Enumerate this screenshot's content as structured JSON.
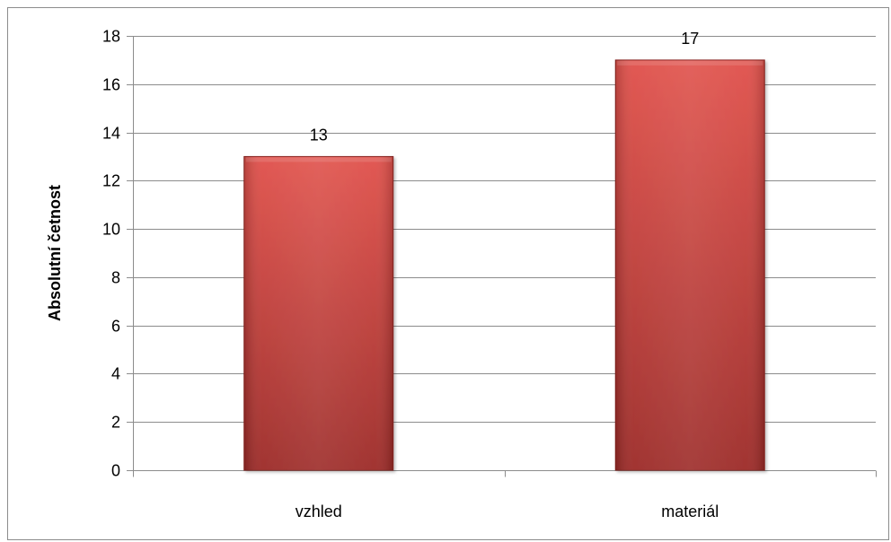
{
  "chart_data": {
    "type": "bar",
    "categories": [
      "vzhled",
      "materiál"
    ],
    "values": [
      13,
      17
    ],
    "data_labels": [
      "13",
      "17"
    ],
    "title": "",
    "xlabel": "",
    "ylabel": "Absolutní četnost",
    "ylim": [
      0,
      18
    ],
    "yticks": [
      0,
      2,
      4,
      6,
      8,
      10,
      12,
      14,
      16,
      18
    ],
    "ytick_labels": [
      "0",
      "2",
      "4",
      "6",
      "8",
      "10",
      "12",
      "14",
      "16",
      "18"
    ],
    "grid": true,
    "legend": "none",
    "colors": {
      "bar_light": "#e0504a",
      "bar_dark": "#9c2a27",
      "bar_edge": "#8a2522",
      "grid": "#8c8c8c",
      "frame": "#8c8c8c"
    }
  }
}
